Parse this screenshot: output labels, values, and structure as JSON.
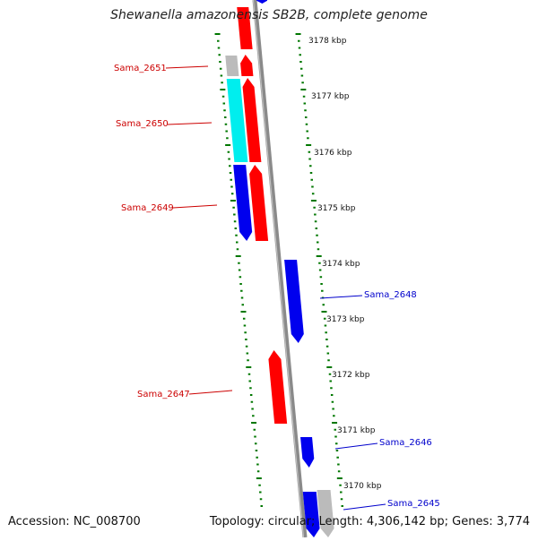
{
  "title": "Shewanella amazonensis SB2B, complete genome",
  "footer": {
    "accession": "Accession: NC_008700",
    "topology": "Topology: circular; Length: 4,306,142 bp; Genes: 3,774"
  },
  "colors": {
    "backbone": "#8a8a8a",
    "forward_gene": "#ff0000",
    "reverse_gene": "#0000ee",
    "rna_gene": "#00eeee",
    "other_gene": "#bbbbbb",
    "tick": "#007700",
    "left_label": "#cc0000",
    "right_label": "#0000cc"
  },
  "kbp_labels": [
    "3178 kbp",
    "3177 kbp",
    "3176 kbp",
    "3175 kbp",
    "3174 kbp",
    "3173 kbp",
    "3172 kbp",
    "3171 kbp",
    "3170 kbp"
  ],
  "gene_labels": [
    {
      "id": "sama-2651",
      "text": "Sama_2651",
      "side": "left"
    },
    {
      "id": "sama-2650",
      "text": "Sama_2650",
      "side": "left"
    },
    {
      "id": "sama-2649",
      "text": "Sama_2649",
      "side": "left"
    },
    {
      "id": "sama-2648",
      "text": "Sama_2648",
      "side": "right"
    },
    {
      "id": "sama-2647",
      "text": "Sama_2647",
      "side": "left"
    },
    {
      "id": "sama-2646",
      "text": "Sama_2646",
      "side": "right"
    },
    {
      "id": "sama-2645",
      "text": "Sama_2645",
      "side": "right"
    }
  ]
}
